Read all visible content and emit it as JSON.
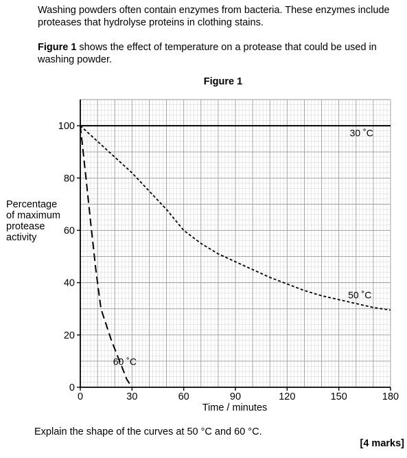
{
  "intro": {
    "line1": "Washing powders often contain enzymes from bacteria.  These enzymes include proteases that hydrolyse proteins in clothing stains.",
    "figure_ref_bold": "Figure 1",
    "figure_ref_rest": " shows the effect of temperature on a protease that could be used in washing powder."
  },
  "figure_title": "Figure 1",
  "question": "Explain the shape of the curves at 50 °C and 60 °C.",
  "marks": "[4 marks]",
  "chart_data": {
    "type": "line",
    "xlabel": "Time / minutes",
    "ylabel_lines": [
      "Percentage",
      "of maximum",
      "protease",
      "activity"
    ],
    "xlim": [
      0,
      180
    ],
    "ylim": [
      0,
      110
    ],
    "x_ticks": [
      0,
      30,
      60,
      90,
      120,
      150,
      180
    ],
    "y_ticks": [
      0,
      20,
      40,
      60,
      80,
      100
    ],
    "grid": true,
    "series": [
      {
        "name": "30 °C",
        "label": "30 ˚C",
        "style": "solid",
        "x": [
          0,
          180
        ],
        "y": [
          100,
          100
        ]
      },
      {
        "name": "50 °C",
        "label": "50 ˚C",
        "style": "dotted",
        "x": [
          0,
          10,
          20,
          30,
          40,
          50,
          55,
          60,
          70,
          80,
          90,
          100,
          110,
          120,
          130,
          140,
          150,
          160,
          170,
          180
        ],
        "y": [
          100,
          94,
          88,
          82,
          75,
          68,
          64,
          60,
          55,
          51,
          48,
          45,
          42,
          39.5,
          37,
          35,
          33.5,
          32,
          30.5,
          29.5
        ]
      },
      {
        "name": "60 °C",
        "label": "60 ˚C",
        "style": "dashed",
        "x": [
          0,
          3,
          6,
          9,
          12,
          15,
          18,
          21,
          24,
          27,
          30
        ],
        "y": [
          100,
          82,
          63,
          45,
          30,
          24,
          18,
          13,
          8,
          3,
          0
        ]
      }
    ]
  }
}
